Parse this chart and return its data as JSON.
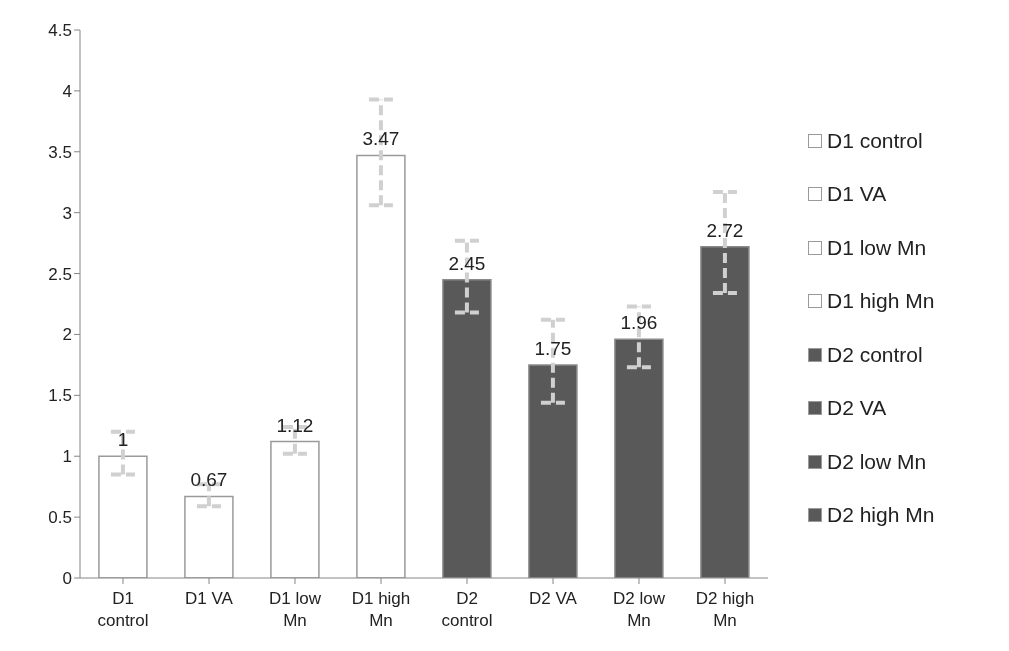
{
  "chart_data": {
    "type": "bar",
    "categories": [
      "D1 control",
      "D1 VA",
      "D1 low Mn",
      "D1 high Mn",
      "D2 control",
      "D2 VA",
      "D2 low Mn",
      "D2 high Mn"
    ],
    "series": [
      {
        "name": "D1 control",
        "color": "#ffffff",
        "values": [
          1,
          null,
          null,
          null,
          null,
          null,
          null,
          null
        ],
        "errors": [
          [
            0.85,
            1.2
          ],
          null,
          null,
          null,
          null,
          null,
          null,
          null
        ]
      },
      {
        "name": "D1 VA",
        "color": "#ffffff",
        "values": [
          null,
          0.67,
          null,
          null,
          null,
          null,
          null,
          null
        ],
        "errors": [
          null,
          [
            0.59,
            0.77
          ],
          null,
          null,
          null,
          null,
          null,
          null
        ]
      },
      {
        "name": "D1 low Mn",
        "color": "#ffffff",
        "values": [
          null,
          null,
          1.12,
          null,
          null,
          null,
          null,
          null
        ],
        "errors": [
          null,
          null,
          [
            1.02,
            1.24
          ],
          null,
          null,
          null,
          null,
          null
        ]
      },
      {
        "name": "D1 high Mn",
        "color": "#ffffff",
        "values": [
          null,
          null,
          null,
          3.47,
          null,
          null,
          null,
          null
        ],
        "errors": [
          null,
          null,
          null,
          [
            3.06,
            3.93
          ],
          null,
          null,
          null,
          null
        ]
      },
      {
        "name": "D2 control",
        "color": "#595959",
        "values": [
          null,
          null,
          null,
          null,
          2.45,
          null,
          null,
          null
        ],
        "errors": [
          null,
          null,
          null,
          null,
          [
            2.18,
            2.77
          ],
          null,
          null,
          null
        ]
      },
      {
        "name": "D2 VA",
        "color": "#595959",
        "values": [
          null,
          null,
          null,
          null,
          null,
          1.75,
          null,
          null
        ],
        "errors": [
          null,
          null,
          null,
          null,
          null,
          [
            1.44,
            2.12
          ],
          null,
          null
        ]
      },
      {
        "name": "D2 low Mn",
        "color": "#595959",
        "values": [
          null,
          null,
          null,
          null,
          null,
          null,
          1.96,
          null
        ],
        "errors": [
          null,
          null,
          null,
          null,
          null,
          null,
          [
            1.73,
            2.23
          ],
          null
        ]
      },
      {
        "name": "D2 high Mn",
        "color": "#595959",
        "values": [
          null,
          null,
          null,
          null,
          null,
          null,
          null,
          2.72
        ],
        "errors": [
          null,
          null,
          null,
          null,
          null,
          null,
          null,
          [
            2.34,
            3.17
          ]
        ]
      }
    ],
    "ylim": [
      0,
      4.5
    ],
    "yticks": [
      0,
      0.5,
      1,
      1.5,
      2,
      2.5,
      3,
      3.5,
      4,
      4.5
    ],
    "grid": false,
    "legend": "right",
    "data_labels": true
  }
}
